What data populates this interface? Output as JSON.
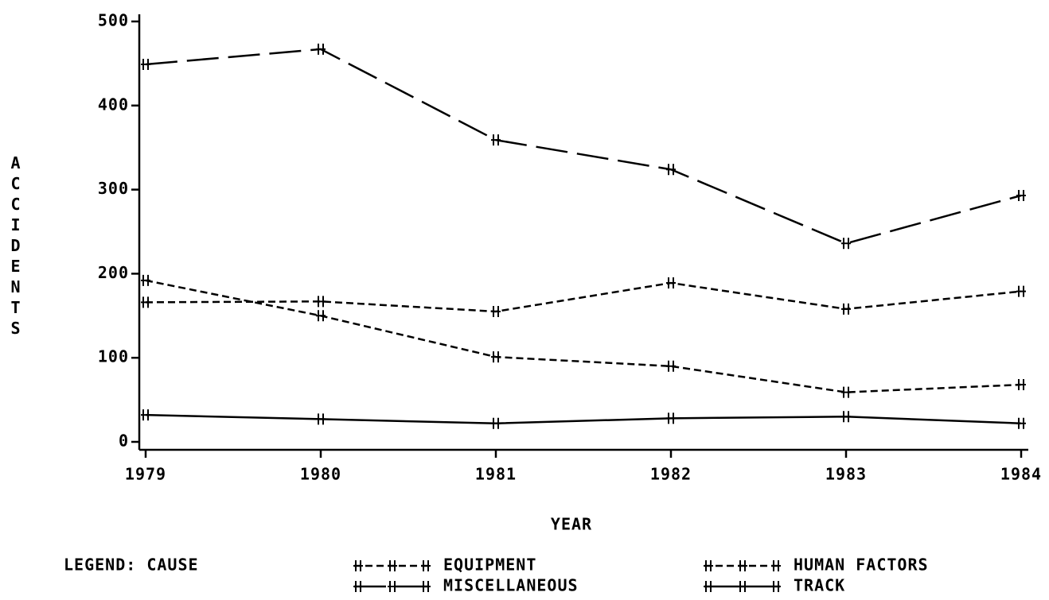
{
  "chart_data": {
    "type": "line",
    "x_label": "YEAR",
    "y_label": "ACCIDENTS",
    "legend_title": "LEGEND:  CAUSE",
    "x": [
      1979,
      1980,
      1981,
      1982,
      1983,
      1984
    ],
    "xlim": [
      1979,
      1984
    ],
    "xticks": [
      1979,
      1980,
      1981,
      1982,
      1983,
      1984
    ],
    "ylim": [
      0,
      500
    ],
    "yticks": [
      0,
      100,
      200,
      300,
      400,
      500
    ],
    "legend": "bottom",
    "series": [
      {
        "name": "EQUIPMENT",
        "color": "#000000",
        "line_style": "dashed",
        "values": [
          192,
          150,
          101,
          90,
          59,
          68
        ]
      },
      {
        "name": "HUMAN FACTORS",
        "color": "#000000",
        "line_style": "dashed",
        "values": [
          166,
          167,
          155,
          189,
          158,
          179
        ]
      },
      {
        "name": "MISCELLANEOUS",
        "color": "#000000",
        "line_style": "long-dashed",
        "values": [
          449,
          467,
          359,
          324,
          236,
          293
        ]
      },
      {
        "name": "TRACK",
        "color": "#000000",
        "line_style": "solid",
        "values": [
          32,
          27,
          22,
          28,
          30,
          22
        ]
      }
    ]
  }
}
